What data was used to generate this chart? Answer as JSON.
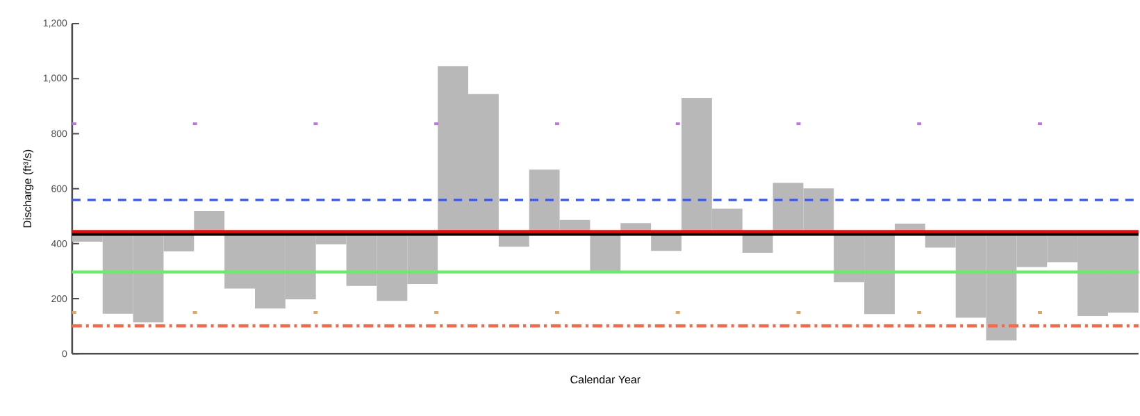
{
  "chart_data": {
    "type": "bar",
    "xlabel": "Calendar Year",
    "ylabel": "Discharge (ft³/s)",
    "categories": [
      null,
      null,
      null,
      null,
      null,
      null,
      null,
      null,
      null,
      null,
      null,
      null,
      null,
      null,
      null,
      null,
      null,
      null,
      null,
      null,
      null,
      null,
      null,
      null,
      null,
      null,
      null,
      null,
      null,
      null,
      null,
      null,
      null,
      null,
      null
    ],
    "base": [
      440,
      440,
      440,
      440,
      440,
      440,
      440,
      440,
      440,
      440,
      440,
      440,
      440,
      440,
      440,
      440,
      440,
      440,
      440,
      440,
      440,
      440,
      440,
      440,
      440,
      440,
      440,
      440,
      440,
      440,
      440,
      440,
      440,
      440,
      440
    ],
    "values": [
      -33,
      -295,
      -326,
      -68,
      78,
      -203,
      -276,
      -242,
      -42,
      -194,
      -248,
      -187,
      605,
      504,
      -51,
      229,
      46,
      -139,
      35,
      -66,
      490,
      87,
      -73,
      181,
      161,
      -180,
      -296,
      33,
      -54,
      -309,
      -392,
      -125,
      -107,
      -303,
      -291
    ],
    "color": "#b8b8b8",
    "ylim": [
      0,
      1200
    ],
    "yticks": [
      0,
      200,
      400,
      600,
      800,
      {
        "value": 1000,
        "label": "1,000"
      },
      {
        "value": 1200,
        "label": "1,200"
      }
    ],
    "ref_lines": [
      {
        "axis": "y",
        "value": 434,
        "color": "#000000",
        "line_style": "solid"
      },
      {
        "axis": "y",
        "value": 444,
        "color": "#ff0000",
        "line_style": "solid"
      },
      {
        "axis": "y",
        "value": 559,
        "color": "#3355ff",
        "line_style": "dashed"
      },
      {
        "axis": "y",
        "value": 297,
        "color": "#66ee66",
        "line_style": "solid"
      },
      {
        "axis": "y",
        "value": 101,
        "color": "#ff6644",
        "line_style": "dashdot"
      },
      {
        "axis": "y",
        "value": 836,
        "color": "#bb77dd",
        "line_style": "dotted"
      },
      {
        "axis": "y",
        "value": 150,
        "color": "#ddaa66",
        "line_style": "dotted"
      }
    ],
    "grid": false
  }
}
